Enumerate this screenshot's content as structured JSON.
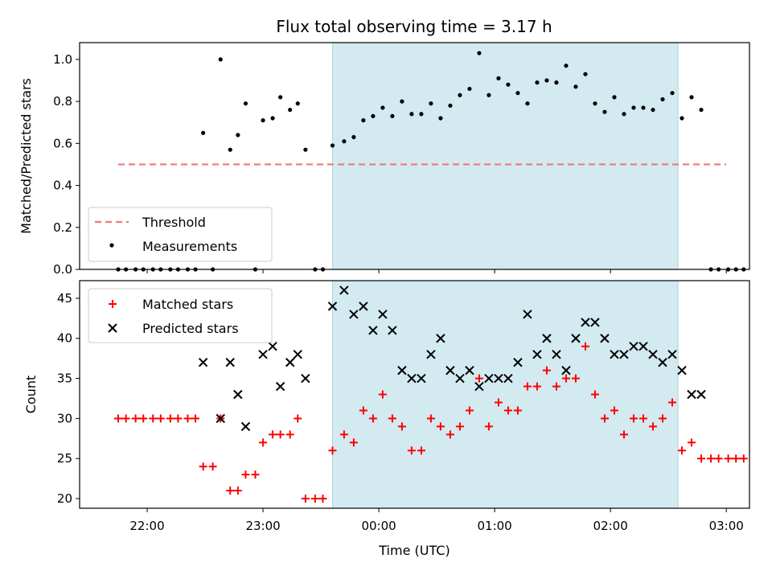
{
  "chart_data": [
    {
      "type": "scatter",
      "title": "Flux total observing time = 3.17 h",
      "ylabel": "Matched/Predicted stars",
      "xlabel": "",
      "xlim": [
        "21:25",
        "03:12"
      ],
      "ylim": [
        0,
        1.08
      ],
      "yticks": [
        "0.0",
        "0.2",
        "0.4",
        "0.6",
        "0.8",
        "1.0"
      ],
      "shaded_interval": [
        "23:36",
        "02:35"
      ],
      "shade_color": "#d2eaf0",
      "legend_position": "lower-left",
      "threshold": {
        "name": "Threshold",
        "value": 0.5,
        "x": [
          "21:45",
          "03:00"
        ],
        "color": "#f07878"
      },
      "series": [
        {
          "name": "Measurements",
          "marker": "dot",
          "color": "#000000",
          "points": [
            [
              "21:45",
              0
            ],
            [
              "21:49",
              0
            ],
            [
              "21:54",
              0
            ],
            [
              "21:58",
              0
            ],
            [
              "22:03",
              0
            ],
            [
              "22:07",
              0
            ],
            [
              "22:12",
              0
            ],
            [
              "22:16",
              0
            ],
            [
              "22:21",
              0
            ],
            [
              "22:25",
              0
            ],
            [
              "22:29",
              0.65
            ],
            [
              "22:34",
              0
            ],
            [
              "22:38",
              1.0
            ],
            [
              "22:43",
              0.57
            ],
            [
              "22:47",
              0.64
            ],
            [
              "22:51",
              0.79
            ],
            [
              "22:56",
              0
            ],
            [
              "23:00",
              0.71
            ],
            [
              "23:05",
              0.72
            ],
            [
              "23:09",
              0.82
            ],
            [
              "23:14",
              0.76
            ],
            [
              "23:18",
              0.79
            ],
            [
              "23:22",
              0.57
            ],
            [
              "23:27",
              0
            ],
            [
              "23:31",
              0
            ],
            [
              "23:36",
              0.59
            ],
            [
              "23:42",
              0.61
            ],
            [
              "23:47",
              0.63
            ],
            [
              "23:52",
              0.71
            ],
            [
              "23:57",
              0.73
            ],
            [
              "00:02",
              0.77
            ],
            [
              "00:07",
              0.73
            ],
            [
              "00:12",
              0.8
            ],
            [
              "00:17",
              0.74
            ],
            [
              "00:22",
              0.74
            ],
            [
              "00:27",
              0.79
            ],
            [
              "00:32",
              0.72
            ],
            [
              "00:37",
              0.78
            ],
            [
              "00:42",
              0.83
            ],
            [
              "00:47",
              0.86
            ],
            [
              "00:52",
              1.03
            ],
            [
              "00:57",
              0.83
            ],
            [
              "01:02",
              0.91
            ],
            [
              "01:07",
              0.88
            ],
            [
              "01:12",
              0.84
            ],
            [
              "01:17",
              0.79
            ],
            [
              "01:22",
              0.89
            ],
            [
              "01:27",
              0.9
            ],
            [
              "01:32",
              0.89
            ],
            [
              "01:37",
              0.97
            ],
            [
              "01:42",
              0.87
            ],
            [
              "01:47",
              0.93
            ],
            [
              "01:52",
              0.79
            ],
            [
              "01:57",
              0.75
            ],
            [
              "02:02",
              0.82
            ],
            [
              "02:07",
              0.74
            ],
            [
              "02:12",
              0.77
            ],
            [
              "02:17",
              0.77
            ],
            [
              "02:22",
              0.76
            ],
            [
              "02:27",
              0.81
            ],
            [
              "02:32",
              0.84
            ],
            [
              "02:37",
              0.72
            ],
            [
              "02:42",
              0.82
            ],
            [
              "02:47",
              0.76
            ],
            [
              "02:52",
              0
            ],
            [
              "02:56",
              0
            ],
            [
              "03:01",
              0
            ],
            [
              "03:05",
              0
            ],
            [
              "03:09",
              0
            ]
          ]
        }
      ]
    },
    {
      "type": "scatter",
      "title": "",
      "ylabel": "Count",
      "xlabel": "Time (UTC)",
      "xlim": [
        "21:25",
        "03:12"
      ],
      "ylim": [
        18.8,
        47.2
      ],
      "yticks": [
        "20",
        "25",
        "30",
        "35",
        "40",
        "45"
      ],
      "xticks": [
        "22:00",
        "23:00",
        "00:00",
        "01:00",
        "02:00",
        "03:00"
      ],
      "shaded_interval": [
        "23:36",
        "02:35"
      ],
      "shade_color": "#d2eaf0",
      "legend_position": "upper-left",
      "series": [
        {
          "name": "Matched stars",
          "marker": "plus",
          "color": "#ff0000",
          "points": [
            [
              "21:45",
              30
            ],
            [
              "21:49",
              30
            ],
            [
              "21:54",
              30
            ],
            [
              "21:58",
              30
            ],
            [
              "22:03",
              30
            ],
            [
              "22:07",
              30
            ],
            [
              "22:12",
              30
            ],
            [
              "22:16",
              30
            ],
            [
              "22:21",
              30
            ],
            [
              "22:25",
              30
            ],
            [
              "22:29",
              24
            ],
            [
              "22:34",
              24
            ],
            [
              "22:38",
              30
            ],
            [
              "22:43",
              21
            ],
            [
              "22:47",
              21
            ],
            [
              "22:51",
              23
            ],
            [
              "22:56",
              23
            ],
            [
              "23:00",
              27
            ],
            [
              "23:05",
              28
            ],
            [
              "23:09",
              28
            ],
            [
              "23:14",
              28
            ],
            [
              "23:18",
              30
            ],
            [
              "23:22",
              20
            ],
            [
              "23:27",
              20
            ],
            [
              "23:31",
              20
            ],
            [
              "23:36",
              26
            ],
            [
              "23:42",
              28
            ],
            [
              "23:47",
              27
            ],
            [
              "23:52",
              31
            ],
            [
              "23:57",
              30
            ],
            [
              "00:02",
              33
            ],
            [
              "00:07",
              30
            ],
            [
              "00:12",
              29
            ],
            [
              "00:17",
              26
            ],
            [
              "00:22",
              26
            ],
            [
              "00:27",
              30
            ],
            [
              "00:32",
              29
            ],
            [
              "00:37",
              28
            ],
            [
              "00:42",
              29
            ],
            [
              "00:47",
              31
            ],
            [
              "00:52",
              35
            ],
            [
              "00:57",
              29
            ],
            [
              "01:02",
              32
            ],
            [
              "01:07",
              31
            ],
            [
              "01:12",
              31
            ],
            [
              "01:17",
              34
            ],
            [
              "01:22",
              34
            ],
            [
              "01:27",
              36
            ],
            [
              "01:32",
              34
            ],
            [
              "01:37",
              35
            ],
            [
              "01:42",
              35
            ],
            [
              "01:47",
              39
            ],
            [
              "01:52",
              33
            ],
            [
              "01:57",
              30
            ],
            [
              "02:02",
              31
            ],
            [
              "02:07",
              28
            ],
            [
              "02:12",
              30
            ],
            [
              "02:17",
              30
            ],
            [
              "02:22",
              29
            ],
            [
              "02:27",
              30
            ],
            [
              "02:32",
              32
            ],
            [
              "02:37",
              26
            ],
            [
              "02:42",
              27
            ],
            [
              "02:47",
              25
            ],
            [
              "02:52",
              25
            ],
            [
              "02:56",
              25
            ],
            [
              "03:01",
              25
            ],
            [
              "03:05",
              25
            ],
            [
              "03:09",
              25
            ]
          ]
        },
        {
          "name": "Predicted stars",
          "marker": "x",
          "color": "#000000",
          "points": [
            [
              "22:29",
              37
            ],
            [
              "22:38",
              30
            ],
            [
              "22:43",
              37
            ],
            [
              "22:47",
              33
            ],
            [
              "22:51",
              29
            ],
            [
              "23:00",
              38
            ],
            [
              "23:05",
              39
            ],
            [
              "23:09",
              34
            ],
            [
              "23:14",
              37
            ],
            [
              "23:18",
              38
            ],
            [
              "23:22",
              35
            ],
            [
              "23:36",
              44
            ],
            [
              "23:42",
              46
            ],
            [
              "23:47",
              43
            ],
            [
              "23:52",
              44
            ],
            [
              "23:57",
              41
            ],
            [
              "00:02",
              43
            ],
            [
              "00:07",
              41
            ],
            [
              "00:12",
              36
            ],
            [
              "00:17",
              35
            ],
            [
              "00:22",
              35
            ],
            [
              "00:27",
              38
            ],
            [
              "00:32",
              40
            ],
            [
              "00:37",
              36
            ],
            [
              "00:42",
              35
            ],
            [
              "00:47",
              36
            ],
            [
              "00:52",
              34
            ],
            [
              "00:57",
              35
            ],
            [
              "01:02",
              35
            ],
            [
              "01:07",
              35
            ],
            [
              "01:12",
              37
            ],
            [
              "01:17",
              43
            ],
            [
              "01:22",
              38
            ],
            [
              "01:27",
              40
            ],
            [
              "01:32",
              38
            ],
            [
              "01:37",
              36
            ],
            [
              "01:42",
              40
            ],
            [
              "01:47",
              42
            ],
            [
              "01:52",
              42
            ],
            [
              "01:57",
              40
            ],
            [
              "02:02",
              38
            ],
            [
              "02:07",
              38
            ],
            [
              "02:12",
              39
            ],
            [
              "02:17",
              39
            ],
            [
              "02:22",
              38
            ],
            [
              "02:27",
              37
            ],
            [
              "02:32",
              38
            ],
            [
              "02:37",
              36
            ],
            [
              "02:42",
              33
            ],
            [
              "02:47",
              33
            ]
          ]
        }
      ]
    }
  ]
}
